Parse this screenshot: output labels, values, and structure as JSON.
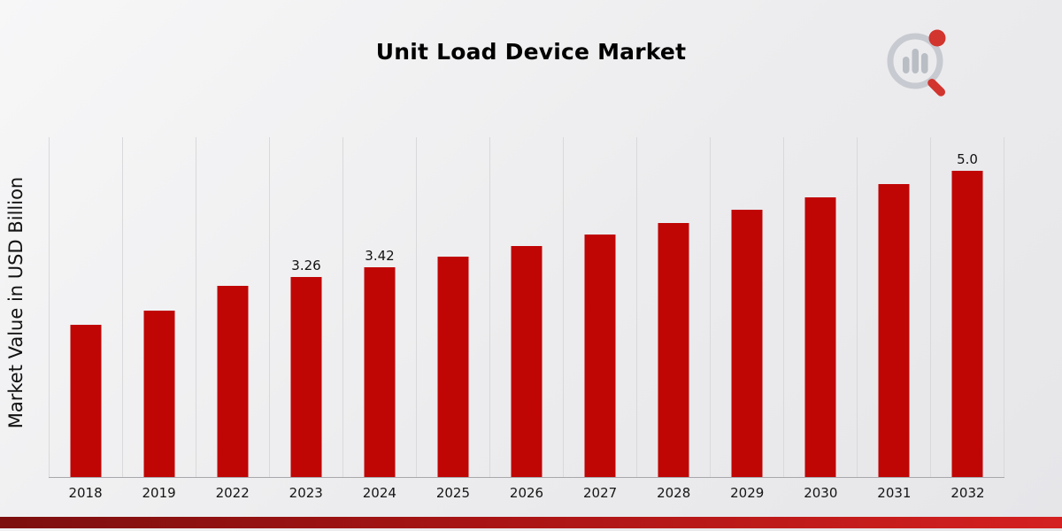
{
  "page": {
    "title": "Unit Load Device Market"
  },
  "chart_data": {
    "type": "bar",
    "title": "Unit Load Device Market",
    "xlabel": "",
    "ylabel": "Market Value in USD Billion",
    "categories": [
      "2018",
      "2019",
      "2022",
      "2023",
      "2024",
      "2025",
      "2026",
      "2027",
      "2028",
      "2029",
      "2030",
      "2031",
      "2032"
    ],
    "values": [
      2.49,
      2.72,
      3.12,
      3.26,
      3.42,
      3.6,
      3.77,
      3.96,
      4.15,
      4.37,
      4.57,
      4.79,
      5.0
    ],
    "data_labels": [
      "",
      "",
      "",
      "3.26",
      "3.42",
      "",
      "",
      "",
      "",
      "",
      "",
      "",
      "5.0"
    ],
    "ylim": [
      0,
      5.55
    ],
    "grid": "vertical-light",
    "legend": "none",
    "bar_color": "#c00505"
  },
  "colors": {
    "bar": "#c00505",
    "background_start": "#f7f7f8",
    "background_end": "#e6e6e9",
    "gridline": "#d9d9dc",
    "axis_line": "#a8a8ac",
    "footer_dark_red": "#7d0f0f",
    "footer_bright_red": "#d42020",
    "logo_gray": "#c3c7cd",
    "logo_red": "#d2342e"
  },
  "logo": {
    "name": "market-research-logo"
  }
}
